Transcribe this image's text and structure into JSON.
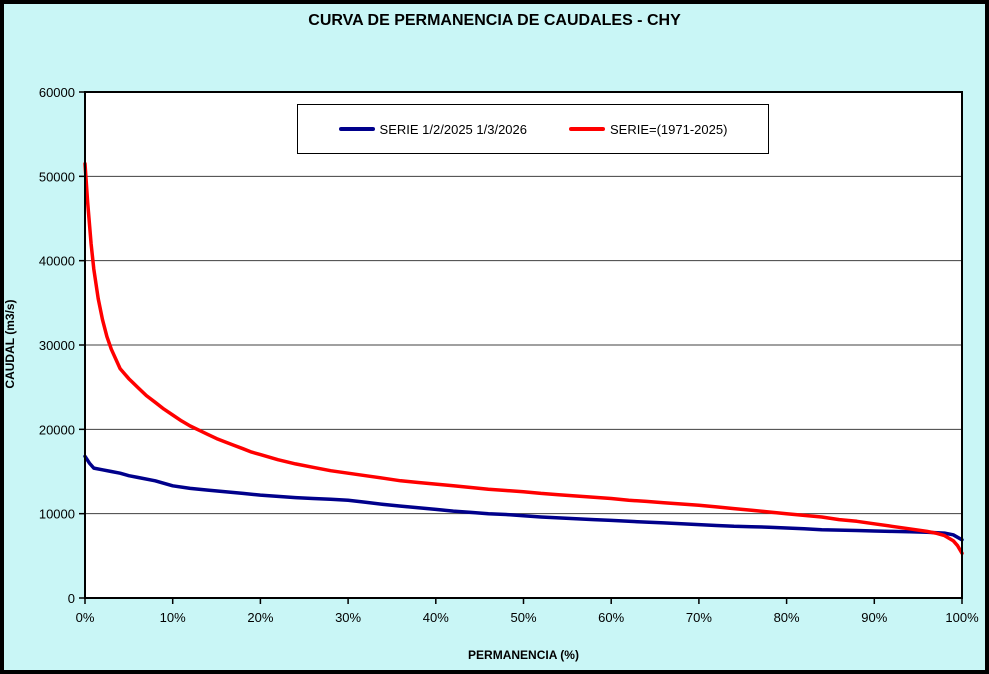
{
  "chart_data": {
    "type": "line",
    "title": "CURVA DE PERMANENCIA DE CAUDALES - CHY",
    "xlabel": "PERMANENCIA (%)",
    "ylabel": "CAUDAL (m3/s)",
    "xlim": [
      0,
      100
    ],
    "ylim": [
      0,
      60000
    ],
    "grid": "horizontal",
    "legend_position": "top-center-inside",
    "xtick_values": [
      0,
      10,
      20,
      30,
      40,
      50,
      60,
      70,
      80,
      90,
      100
    ],
    "xtick_labels": [
      "0%",
      "10%",
      "20%",
      "30%",
      "40%",
      "50%",
      "60%",
      "70%",
      "80%",
      "90%",
      "100%"
    ],
    "ytick_values": [
      0,
      10000,
      20000,
      30000,
      40000,
      50000,
      60000
    ],
    "ytick_labels": [
      "0",
      "10000",
      "20000",
      "30000",
      "40000",
      "50000",
      "60000"
    ],
    "colors": {
      "background": "#C9F6F6",
      "plot_bg": "#FFFFFF",
      "gridline": "#404040",
      "axis": "#000000"
    },
    "series": [
      {
        "name": "SERIE 1/2/2025 1/3/2026",
        "color": "#00008B",
        "x": [
          0,
          0.5,
          1,
          2,
          3,
          4,
          5,
          6,
          8,
          10,
          12,
          14,
          16,
          18,
          20,
          22,
          24,
          26,
          28,
          30,
          32,
          34,
          36,
          38,
          40,
          42,
          44,
          46,
          48,
          50,
          52,
          54,
          56,
          58,
          60,
          62,
          64,
          66,
          68,
          70,
          72,
          74,
          76,
          78,
          80,
          82,
          84,
          86,
          88,
          90,
          92,
          94,
          96,
          98,
          99,
          100
        ],
        "y": [
          16800,
          16000,
          15400,
          15200,
          15000,
          14800,
          14500,
          14300,
          13900,
          13300,
          13000,
          12800,
          12600,
          12400,
          12200,
          12050,
          11900,
          11800,
          11700,
          11600,
          11350,
          11100,
          10900,
          10700,
          10500,
          10300,
          10150,
          10000,
          9900,
          9750,
          9600,
          9500,
          9400,
          9300,
          9200,
          9100,
          9000,
          8900,
          8800,
          8700,
          8600,
          8500,
          8450,
          8400,
          8300,
          8200,
          8100,
          8050,
          8000,
          7950,
          7900,
          7850,
          7800,
          7700,
          7500,
          6900
        ]
      },
      {
        "name": "SERIE=(1971-2025)",
        "color": "#FF0000",
        "x": [
          0,
          0.3,
          0.7,
          1,
          1.5,
          2,
          2.5,
          3,
          4,
          5,
          6,
          7,
          8,
          9,
          10,
          11,
          12,
          13,
          14,
          15,
          16,
          17,
          18,
          19,
          20,
          22,
          24,
          26,
          28,
          30,
          32,
          34,
          36,
          38,
          40,
          42,
          44,
          46,
          48,
          50,
          52,
          54,
          56,
          58,
          60,
          62,
          64,
          66,
          68,
          70,
          72,
          74,
          76,
          78,
          80,
          82,
          84,
          86,
          88,
          90,
          92,
          94,
          96,
          97,
          98,
          99,
          99.5,
          100
        ],
        "y": [
          51500,
          47000,
          42000,
          39000,
          35500,
          33000,
          31000,
          29500,
          27200,
          26000,
          25000,
          24000,
          23200,
          22400,
          21700,
          21000,
          20400,
          19900,
          19400,
          18900,
          18500,
          18100,
          17700,
          17300,
          17000,
          16400,
          15900,
          15500,
          15100,
          14800,
          14500,
          14200,
          13900,
          13700,
          13500,
          13300,
          13100,
          12900,
          12750,
          12600,
          12400,
          12250,
          12100,
          11950,
          11800,
          11600,
          11450,
          11300,
          11150,
          11000,
          10800,
          10600,
          10400,
          10200,
          10000,
          9800,
          9600,
          9300,
          9100,
          8800,
          8500,
          8200,
          7900,
          7700,
          7400,
          6800,
          6200,
          5300
        ]
      }
    ]
  }
}
